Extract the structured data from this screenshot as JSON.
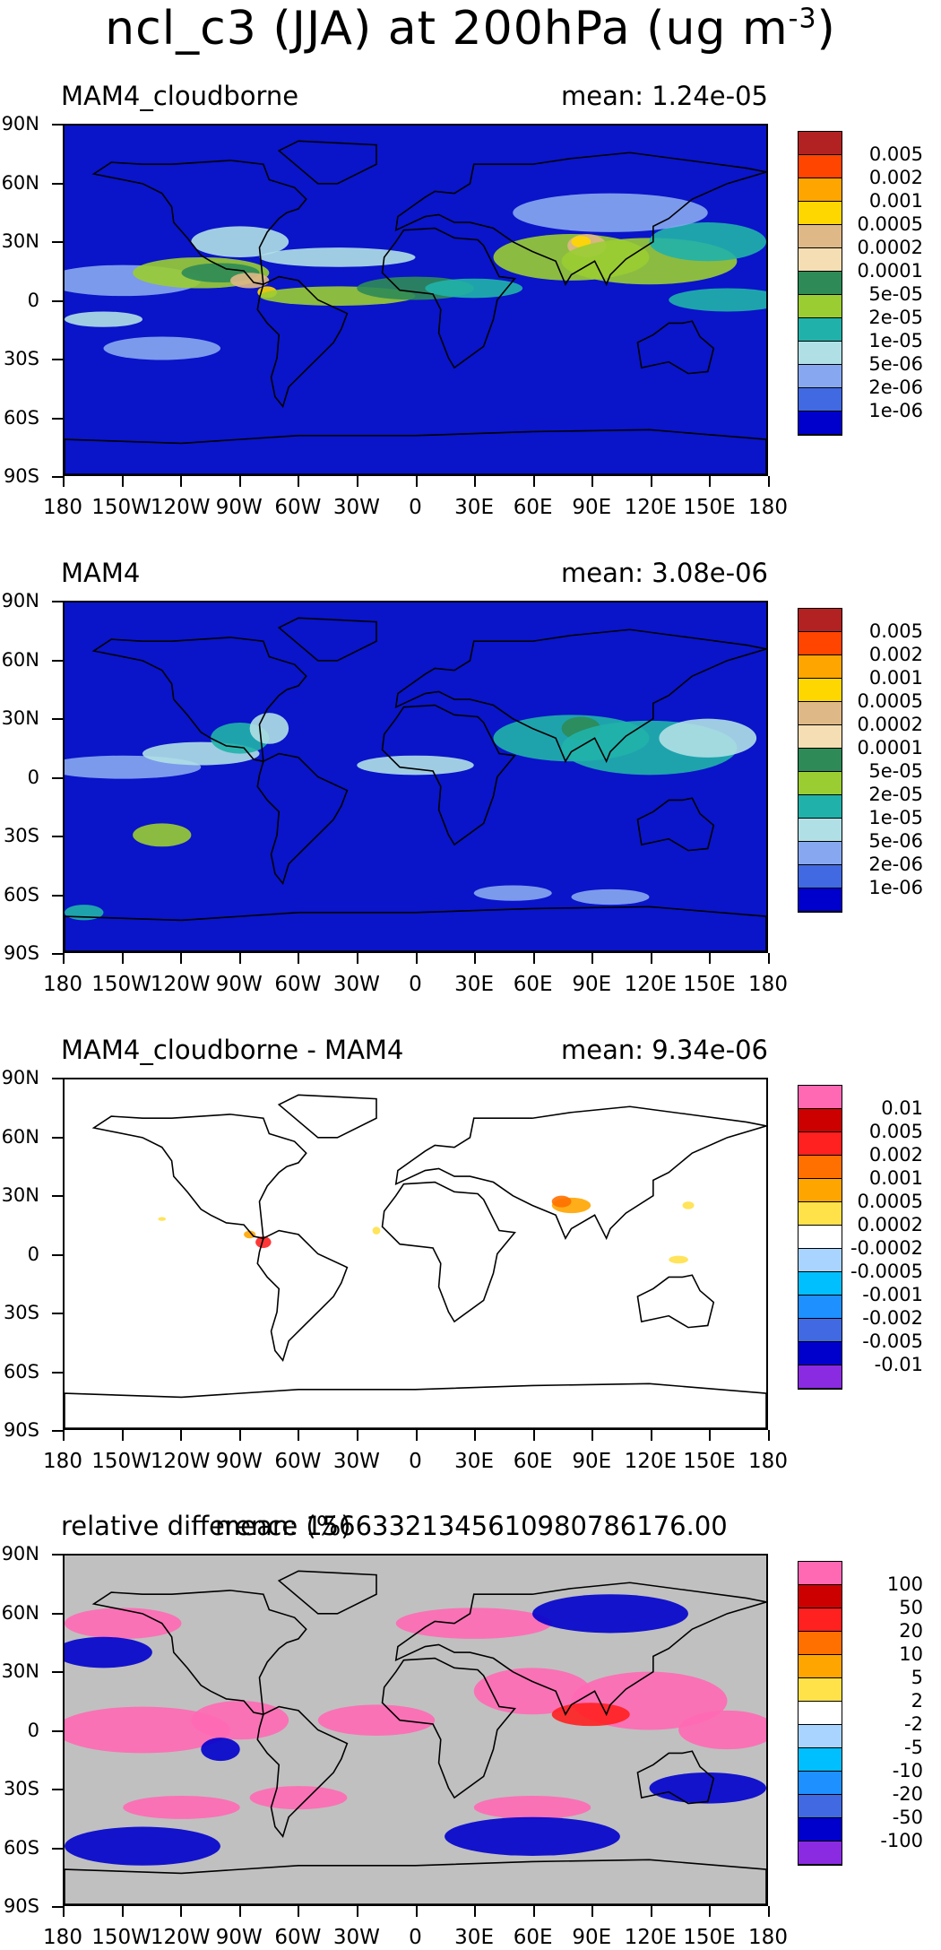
{
  "figure": {
    "title": "ncl_c3 (JJA) at 200hPa (ug m",
    "title_sup": "-3",
    "title_close": ")"
  },
  "chart_data": [
    {
      "type": "heatmap",
      "title": "MAM4_cloudborne",
      "mean_text": "mean: 1.24e-05",
      "lat_ticks": [
        "90N",
        "60N",
        "30N",
        "0",
        "30S",
        "60S",
        "90S"
      ],
      "lon_ticks": [
        "180",
        "150W",
        "120W",
        "90W",
        "60W",
        "30W",
        "0",
        "30E",
        "60E",
        "90E",
        "120E",
        "150E",
        "180"
      ],
      "colorbar": {
        "labels": [
          "0.005",
          "0.002",
          "0.001",
          "0.0005",
          "0.0002",
          "0.0001",
          "5e-05",
          "2e-05",
          "1e-05",
          "5e-06",
          "2e-06",
          "1e-06"
        ],
        "colors": [
          "#b22222",
          "#ff4500",
          "#ffa500",
          "#ffd700",
          "#deb887",
          "#f5deb3",
          "#2e8b57",
          "#9acd32",
          "#20b2aa",
          "#b0e0e6",
          "#87a8f0",
          "#4169e1",
          "#0000cd"
        ]
      },
      "background": "#0a14c8"
    },
    {
      "type": "heatmap",
      "title": "MAM4",
      "mean_text": "mean: 3.08e-06",
      "lat_ticks": [
        "90N",
        "60N",
        "30N",
        "0",
        "30S",
        "60S",
        "90S"
      ],
      "lon_ticks": [
        "180",
        "150W",
        "120W",
        "90W",
        "60W",
        "30W",
        "0",
        "30E",
        "60E",
        "90E",
        "120E",
        "150E",
        "180"
      ],
      "colorbar": {
        "labels": [
          "0.005",
          "0.002",
          "0.001",
          "0.0005",
          "0.0002",
          "0.0001",
          "5e-05",
          "2e-05",
          "1e-05",
          "5e-06",
          "2e-06",
          "1e-06"
        ],
        "colors": [
          "#b22222",
          "#ff4500",
          "#ffa500",
          "#ffd700",
          "#deb887",
          "#f5deb3",
          "#2e8b57",
          "#9acd32",
          "#20b2aa",
          "#b0e0e6",
          "#87a8f0",
          "#4169e1",
          "#0000cd"
        ]
      },
      "background": "#0a14c8"
    },
    {
      "type": "heatmap",
      "title": "MAM4_cloudborne - MAM4",
      "mean_text": "mean: 9.34e-06",
      "lat_ticks": [
        "90N",
        "60N",
        "30N",
        "0",
        "30S",
        "60S",
        "90S"
      ],
      "lon_ticks": [
        "180",
        "150W",
        "120W",
        "90W",
        "60W",
        "30W",
        "0",
        "30E",
        "60E",
        "90E",
        "120E",
        "150E",
        "180"
      ],
      "colorbar": {
        "labels": [
          "0.01",
          "0.005",
          "0.002",
          "0.001",
          "0.0005",
          "0.0002",
          "-0.0002",
          "-0.0005",
          "-0.001",
          "-0.002",
          "-0.005",
          "-0.01"
        ],
        "colors": [
          "#ff69b4",
          "#cd0000",
          "#ff2020",
          "#ff7000",
          "#ffa500",
          "#ffe14a",
          "#ffffff",
          "#a8d4ff",
          "#00bfff",
          "#1e90ff",
          "#4169e1",
          "#0000cd",
          "#8a2be2"
        ]
      },
      "background": "#ffffff"
    },
    {
      "type": "heatmap",
      "title": "relative difference (%)",
      "mean_text": "mean: 15663321345610980786176.00",
      "lat_ticks": [
        "90N",
        "60N",
        "30N",
        "0",
        "30S",
        "60S",
        "90S"
      ],
      "lon_ticks": [
        "180",
        "150W",
        "120W",
        "90W",
        "60W",
        "30W",
        "0",
        "30E",
        "60E",
        "90E",
        "120E",
        "150E",
        "180"
      ],
      "colorbar": {
        "labels": [
          "100",
          "50",
          "20",
          "10",
          "5",
          "2",
          "-2",
          "-5",
          "-10",
          "-20",
          "-50",
          "-100"
        ],
        "colors": [
          "#ff69b4",
          "#cd0000",
          "#ff2020",
          "#ff7000",
          "#ffa500",
          "#ffe14a",
          "#ffffff",
          "#a8d4ff",
          "#00bfff",
          "#1e90ff",
          "#4169e1",
          "#0000cd",
          "#8a2be2"
        ]
      },
      "background": "#c0c0c0"
    }
  ]
}
